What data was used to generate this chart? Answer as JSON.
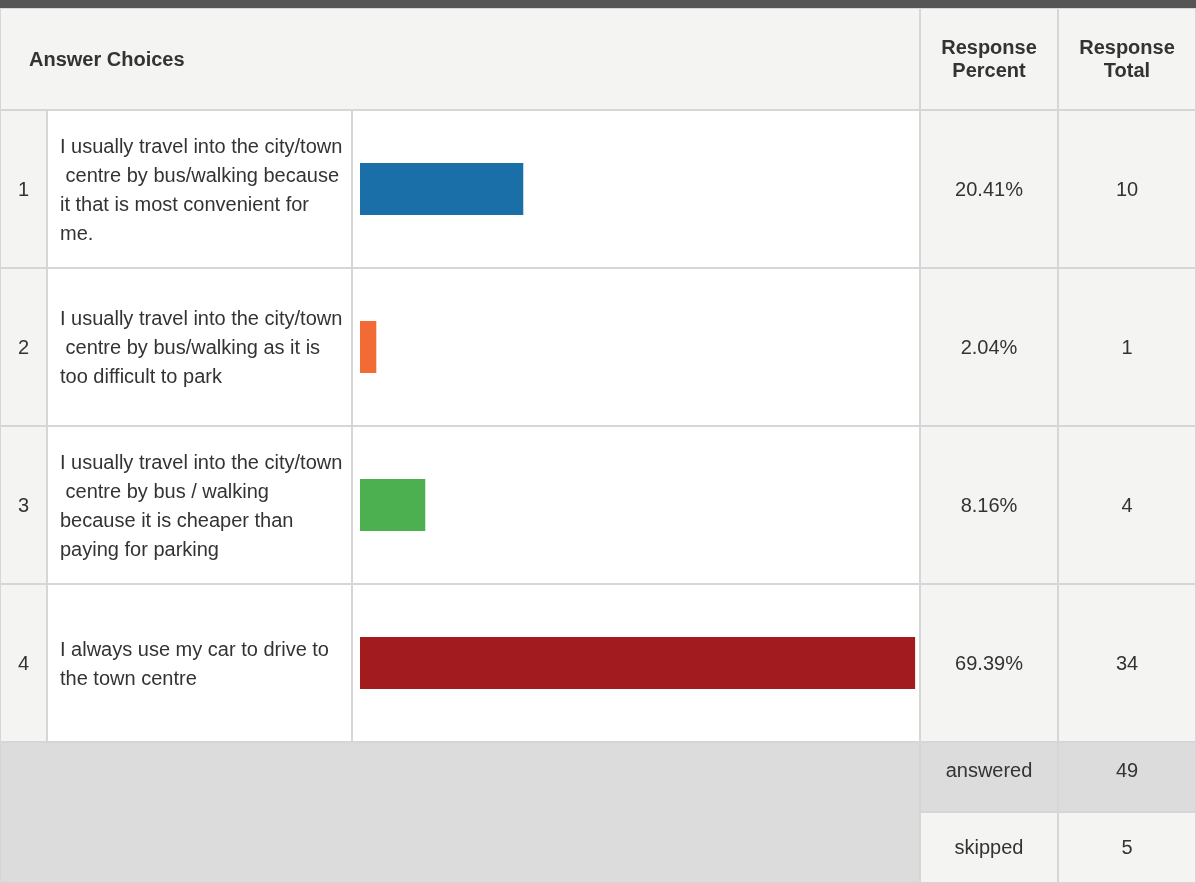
{
  "chart_data": {
    "type": "bar",
    "orientation": "horizontal",
    "categories": [
      "I usually travel into the city/town centre by bus/walking because it that is most convenient for me.",
      "I usually travel into the city/town centre by bus/walking as it is too difficult to park",
      "I usually travel into the city/town centre by bus / walking because it is cheaper than paying for parking",
      "I always use my car to drive to the town centre"
    ],
    "values": [
      20.41,
      2.04,
      8.16,
      69.39
    ],
    "colors": [
      "#1b6fa8",
      "#f26b35",
      "#4caf50",
      "#a11b1f"
    ],
    "value_labels": [
      "20.41%",
      "2.04%",
      "8.16%",
      "69.39%"
    ],
    "annotations": [
      "Answer Choices",
      "Response Percent",
      "Response Total",
      "1",
      "2",
      "3",
      "4",
      "10",
      "1",
      "4",
      "34",
      "answered",
      "49",
      "skipped",
      "5"
    ]
  }
}
